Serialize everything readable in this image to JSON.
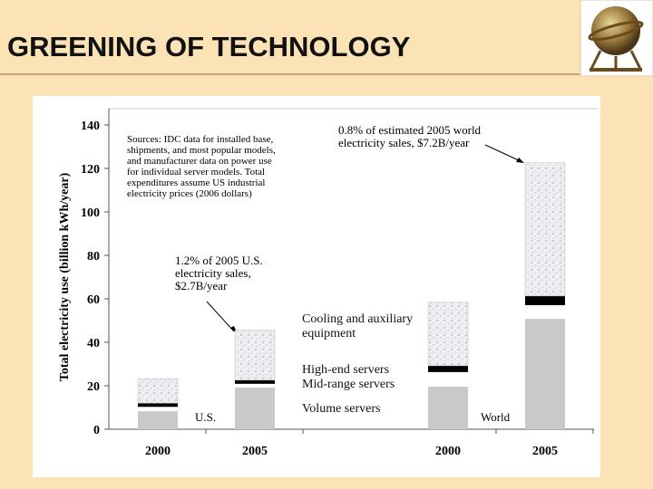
{
  "slide": {
    "title": "GREENING OF TECHNOLOGY"
  },
  "chart_data": {
    "type": "bar",
    "stacked": true,
    "ylabel": "Total electricity use (billion kWh/year)",
    "categories": [
      "2000",
      "2005",
      "2000",
      "2005"
    ],
    "groups": [
      "U.S.",
      "World"
    ],
    "series": [
      {
        "name": "Volume servers",
        "color": "#c9c9c9",
        "values": [
          8.3,
          19.2,
          19.6,
          50.8
        ]
      },
      {
        "name": "Mid-range servers",
        "color": "#ffffff",
        "values": [
          2.0,
          1.7,
          6.7,
          6.3
        ]
      },
      {
        "name": "High-end servers",
        "color": "#000000",
        "values": [
          1.7,
          1.7,
          2.9,
          4.2
        ]
      },
      {
        "name": "Cooling and auxiliary equipment",
        "color": "#e6e8ec",
        "texture": true,
        "values": [
          11.3,
          22.9,
          29.2,
          61.3
        ]
      }
    ],
    "ylim": [
      0,
      140
    ],
    "yticks": [
      0,
      20,
      40,
      60,
      80,
      100,
      120,
      140
    ],
    "annotations": [
      {
        "lines": [
          "Sources:  IDC data for installed base,",
          "shipments, and most popular models,",
          "and manufacturer data on power use",
          "for individual server models.  Total",
          "expenditures assume US industrial",
          "electricity prices (2006 dollars)"
        ]
      },
      {
        "lines": [
          "1.2% of 2005 U.S.",
          "electricity sales,",
          "$2.7B/year"
        ]
      },
      {
        "lines": [
          "0.8% of estimated 2005 world",
          "electricity sales, $7.2B/year"
        ]
      }
    ]
  }
}
